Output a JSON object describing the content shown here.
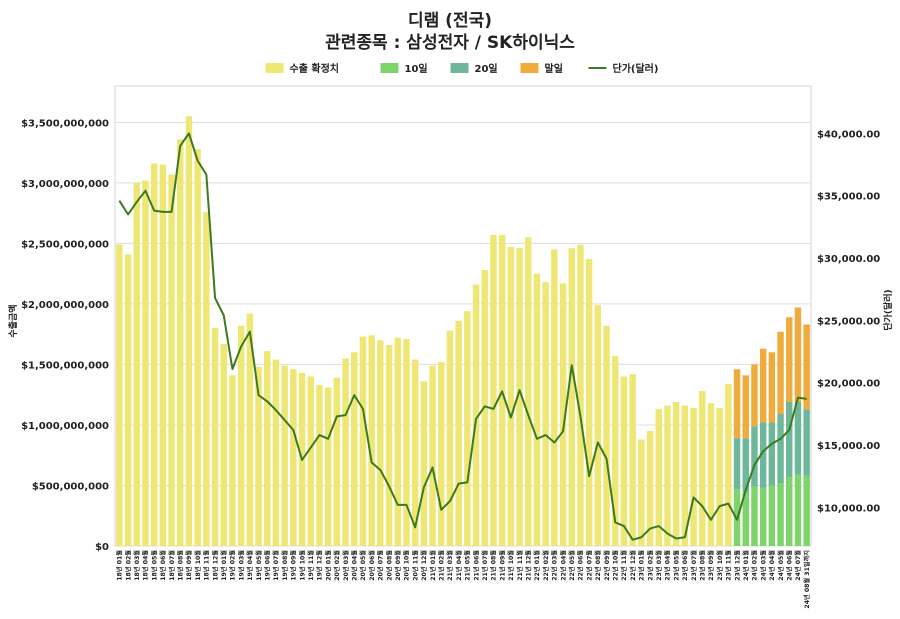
{
  "chart_data": {
    "type": "bar",
    "title": "디램 (전국)",
    "subtitle": "관련종목 : 삼성전자 / SK하이닉스",
    "ylabel": "수출금액",
    "y2label": "단가(달러)",
    "ylim": [
      0,
      3800000000
    ],
    "y2lim": [
      6900,
      43800
    ],
    "y_ticks": [
      {
        "value": 0,
        "label": "$0"
      },
      {
        "value": 500000000,
        "label": "$500,000,000"
      },
      {
        "value": 1000000000,
        "label": "$1,000,000,000"
      },
      {
        "value": 1500000000,
        "label": "$1,500,000,000"
      },
      {
        "value": 2000000000,
        "label": "$2,000,000,000"
      },
      {
        "value": 2500000000,
        "label": "$2,500,000,000"
      },
      {
        "value": 3000000000,
        "label": "$3,000,000,000"
      },
      {
        "value": 3500000000,
        "label": "$3,500,000,000"
      }
    ],
    "y2_ticks": [
      {
        "value": 10000,
        "label": "$10,000.00"
      },
      {
        "value": 15000,
        "label": "$15,000.00"
      },
      {
        "value": 20000,
        "label": "$20,000.00"
      },
      {
        "value": 25000,
        "label": "$25,000.00"
      },
      {
        "value": 30000,
        "label": "$30,000.00"
      },
      {
        "value": 35000,
        "label": "$35,000.00"
      },
      {
        "value": 40000,
        "label": "$40,000.00"
      }
    ],
    "grid": true,
    "legend_position": "top-center",
    "legend": [
      {
        "label": "수출 확정치",
        "color": "#eee773",
        "kind": "bar"
      },
      {
        "label": "10일",
        "color": "#7ed36a",
        "kind": "bar"
      },
      {
        "label": "20일",
        "color": "#6db89a",
        "kind": "bar"
      },
      {
        "label": "말일",
        "color": "#efac3c",
        "kind": "bar"
      },
      {
        "label": "단가(달러)",
        "color": "#3c7a1f",
        "kind": "line"
      }
    ],
    "categories": [
      "18년 01월",
      "18년 02월",
      "18년 03월",
      "18년 04월",
      "18년 05월",
      "18년 06월",
      "18년 07월",
      "18년 08월",
      "18년 09월",
      "18년 10월",
      "18년 11월",
      "18년 12월",
      "19년 01월",
      "19년 02월",
      "19년 03월",
      "19년 04월",
      "19년 05월",
      "19년 06월",
      "19년 07월",
      "19년 08월",
      "19년 09월",
      "19년 10월",
      "19년 11월",
      "19년 12월",
      "20년 01월",
      "20년 02월",
      "20년 03월",
      "20년 04월",
      "20년 05월",
      "20년 06월",
      "20년 07월",
      "20년 08월",
      "20년 09월",
      "20년 10월",
      "20년 11월",
      "20년 12월",
      "21년 01월",
      "21년 02월",
      "21년 03월",
      "21년 04월",
      "21년 05월",
      "21년 06월",
      "21년 07월",
      "21년 08월",
      "21년 09월",
      "21년 10월",
      "21년 11월",
      "21년 12월",
      "22년 01월",
      "22년 02월",
      "22년 03월",
      "22년 04월",
      "22년 05월",
      "22년 06월",
      "22년 07월",
      "22년 08월",
      "22년 09월",
      "22년 10월",
      "22년 11월",
      "22년 12월",
      "23년 01월",
      "23년 02월",
      "23년 03월",
      "23년 04월",
      "23년 05월",
      "23년 06월",
      "23년 07월",
      "23년 08월",
      "23년 09월",
      "23년 10월",
      "23년 11월",
      "23년 12월",
      "24년 01월",
      "24년 02월",
      "24년 03월",
      "24년 04월",
      "24년 05월",
      "24년 06월",
      "24년 07월",
      "24년 08월 31일까지"
    ],
    "series": [
      {
        "name": "수출 확정치",
        "color": "#eee773",
        "values": [
          2490000000,
          2410000000,
          3000000000,
          3020000000,
          3160000000,
          3150000000,
          3070000000,
          3360000000,
          3550000000,
          3280000000,
          2760000000,
          1800000000,
          1670000000,
          1410000000,
          1820000000,
          1920000000,
          1480000000,
          1610000000,
          1540000000,
          1490000000,
          1460000000,
          1430000000,
          1400000000,
          1330000000,
          1310000000,
          1390000000,
          1550000000,
          1600000000,
          1730000000,
          1740000000,
          1700000000,
          1660000000,
          1720000000,
          1710000000,
          1540000000,
          1360000000,
          1490000000,
          1520000000,
          1780000000,
          1860000000,
          1940000000,
          2160000000,
          2280000000,
          2570000000,
          2570000000,
          2470000000,
          2460000000,
          2550000000,
          2250000000,
          2180000000,
          2450000000,
          2170000000,
          2460000000,
          2490000000,
          2370000000,
          1990000000,
          1820000000,
          1570000000,
          1400000000,
          1420000000,
          880000000,
          950000000,
          1130000000,
          1160000000,
          1190000000,
          1160000000,
          1140000000,
          1280000000,
          1180000000,
          1140000000,
          1340000000,
          0,
          0,
          0,
          0,
          0,
          0,
          0,
          0,
          0
        ]
      },
      {
        "name": "10일",
        "color": "#7ed36a",
        "values": [
          0,
          0,
          0,
          0,
          0,
          0,
          0,
          0,
          0,
          0,
          0,
          0,
          0,
          0,
          0,
          0,
          0,
          0,
          0,
          0,
          0,
          0,
          0,
          0,
          0,
          0,
          0,
          0,
          0,
          0,
          0,
          0,
          0,
          0,
          0,
          0,
          0,
          0,
          0,
          0,
          0,
          0,
          0,
          0,
          0,
          0,
          0,
          0,
          0,
          0,
          0,
          0,
          0,
          0,
          0,
          0,
          0,
          0,
          0,
          0,
          0,
          0,
          0,
          0,
          0,
          0,
          0,
          0,
          0,
          0,
          0,
          470000000,
          440000000,
          490000000,
          480000000,
          500000000,
          520000000,
          570000000,
          590000000,
          580000000
        ]
      },
      {
        "name": "20일",
        "color": "#6db89a",
        "values": [
          0,
          0,
          0,
          0,
          0,
          0,
          0,
          0,
          0,
          0,
          0,
          0,
          0,
          0,
          0,
          0,
          0,
          0,
          0,
          0,
          0,
          0,
          0,
          0,
          0,
          0,
          0,
          0,
          0,
          0,
          0,
          0,
          0,
          0,
          0,
          0,
          0,
          0,
          0,
          0,
          0,
          0,
          0,
          0,
          0,
          0,
          0,
          0,
          0,
          0,
          0,
          0,
          0,
          0,
          0,
          0,
          0,
          0,
          0,
          0,
          0,
          0,
          0,
          0,
          0,
          0,
          0,
          0,
          0,
          0,
          0,
          420000000,
          450000000,
          500000000,
          540000000,
          520000000,
          570000000,
          620000000,
          600000000,
          550000000
        ]
      },
      {
        "name": "말일",
        "color": "#efac3c",
        "values": [
          0,
          0,
          0,
          0,
          0,
          0,
          0,
          0,
          0,
          0,
          0,
          0,
          0,
          0,
          0,
          0,
          0,
          0,
          0,
          0,
          0,
          0,
          0,
          0,
          0,
          0,
          0,
          0,
          0,
          0,
          0,
          0,
          0,
          0,
          0,
          0,
          0,
          0,
          0,
          0,
          0,
          0,
          0,
          0,
          0,
          0,
          0,
          0,
          0,
          0,
          0,
          0,
          0,
          0,
          0,
          0,
          0,
          0,
          0,
          0,
          0,
          0,
          0,
          0,
          0,
          0,
          0,
          0,
          0,
          0,
          0,
          570000000,
          520000000,
          510000000,
          610000000,
          580000000,
          680000000,
          700000000,
          780000000,
          700000000
        ]
      },
      {
        "name": "단가(달러)",
        "color": "#3c7a1f",
        "axis": "right",
        "values": [
          34600,
          33500,
          34500,
          35400,
          33800,
          33700,
          33700,
          39000,
          40000,
          37800,
          36700,
          26800,
          25400,
          21100,
          22900,
          24100,
          19000,
          18500,
          17800,
          17000,
          16200,
          13800,
          14800,
          15800,
          15500,
          17300,
          17400,
          19000,
          17900,
          13600,
          13000,
          11700,
          10200,
          10200,
          8400,
          11600,
          13200,
          9800,
          10500,
          11900,
          12000,
          17100,
          18100,
          17900,
          19300,
          17200,
          19400,
          17400,
          15500,
          15800,
          15200,
          16100,
          21400,
          17300,
          12500,
          15200,
          13900,
          8800,
          8500,
          7400,
          7600,
          8300,
          8500,
          7900,
          7500,
          7600,
          10800,
          10100,
          9000,
          10100,
          10300,
          9000,
          11400,
          13400,
          14500,
          15100,
          15500,
          16200,
          18800,
          18700
        ]
      }
    ]
  }
}
